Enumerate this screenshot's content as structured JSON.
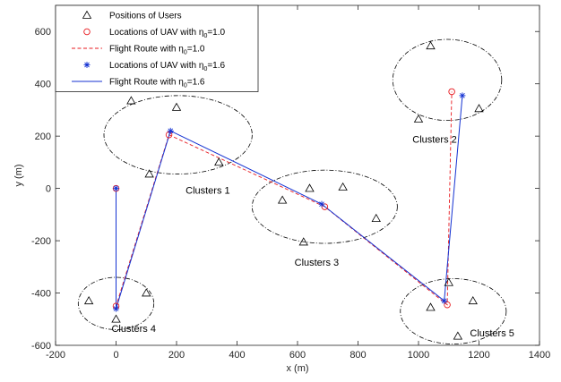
{
  "chart_data": {
    "type": "scatter",
    "xlabel": "x (m)",
    "ylabel": "y (m)",
    "xlim": [
      -200,
      1400
    ],
    "ylim": [
      -600,
      700
    ],
    "xticks": [
      "-200",
      "0",
      "200",
      "400",
      "600",
      "800",
      "1000",
      "1200",
      "1400"
    ],
    "yticks": [
      "-600",
      "-400",
      "-200",
      "0",
      "200",
      "400",
      "600"
    ],
    "grid": false,
    "legend_position": "top-left",
    "colors": {
      "users": "#000000",
      "route10": "#e8191f",
      "route16": "#1432d2",
      "ellipse": "#000000"
    },
    "legend": [
      {
        "key": "users",
        "label": "Positions of Users",
        "sub": ""
      },
      {
        "key": "uav10",
        "label": "Locations of UAV with η",
        "sub": "0",
        "suffix": "=1.0"
      },
      {
        "key": "route10",
        "label": "Flight Route with η",
        "sub": "0",
        "suffix": "=1.0"
      },
      {
        "key": "uav16",
        "label": "Locations of UAV with η",
        "sub": "0",
        "suffix": "=1.6"
      },
      {
        "key": "route16",
        "label": "Flight Route with η",
        "sub": "0",
        "suffix": "=1.6"
      }
    ],
    "series": [
      {
        "name": "Positions of Users",
        "marker": "triangle",
        "points": [
          [
            50,
            335
          ],
          [
            200,
            310
          ],
          [
            110,
            55
          ],
          [
            340,
            100
          ],
          [
            1000,
            265
          ],
          [
            1040,
            545
          ],
          [
            1200,
            305
          ],
          [
            550,
            -45
          ],
          [
            640,
            0
          ],
          [
            750,
            5
          ],
          [
            860,
            -115
          ],
          [
            620,
            -205
          ],
          [
            -90,
            -430
          ],
          [
            100,
            -400
          ],
          [
            0,
            -500
          ],
          [
            1040,
            -455
          ],
          [
            1100,
            -360
          ],
          [
            1180,
            -430
          ],
          [
            1130,
            -565
          ]
        ]
      },
      {
        "name": "Locations of UAV with η0=1.0",
        "marker": "circle",
        "points": [
          [
            0,
            0
          ],
          [
            175,
            205
          ],
          [
            690,
            -70
          ],
          [
            1095,
            -445
          ],
          [
            1110,
            370
          ],
          [
            0,
            -450
          ]
        ]
      },
      {
        "name": "Flight Route with η0=1.0",
        "style": "dashed",
        "points": [
          [
            0,
            0
          ],
          [
            0,
            -450
          ],
          [
            175,
            205
          ],
          [
            690,
            -70
          ],
          [
            1095,
            -445
          ],
          [
            1110,
            370
          ]
        ]
      },
      {
        "name": "Locations of UAV with η0=1.6",
        "marker": "star",
        "points": [
          [
            0,
            0
          ],
          [
            180,
            220
          ],
          [
            680,
            -60
          ],
          [
            1085,
            -430
          ],
          [
            1145,
            355
          ],
          [
            0,
            -460
          ]
        ]
      },
      {
        "name": "Flight Route with η0=1.6",
        "style": "solid",
        "points": [
          [
            0,
            0
          ],
          [
            0,
            -460
          ],
          [
            180,
            220
          ],
          [
            680,
            -60
          ],
          [
            1085,
            -430
          ],
          [
            1145,
            355
          ]
        ]
      }
    ],
    "clusters": [
      {
        "label": "Clusters 1",
        "center": [
          205,
          205
        ],
        "rx": 245,
        "ry": 150,
        "label_at": [
          230,
          -20
        ]
      },
      {
        "label": "Clusters 2",
        "center": [
          1095,
          415
        ],
        "rx": 180,
        "ry": 155,
        "label_at": [
          980,
          175
        ]
      },
      {
        "label": "Clusters 3",
        "center": [
          690,
          -70
        ],
        "rx": 240,
        "ry": 140,
        "label_at": [
          590,
          -295
        ]
      },
      {
        "label": "Clusters 4",
        "center": [
          0,
          -440
        ],
        "rx": 125,
        "ry": 100,
        "label_at": [
          -15,
          -548
        ]
      },
      {
        "label": "Clusters 5",
        "center": [
          1115,
          -470
        ],
        "rx": 175,
        "ry": 125,
        "label_at": [
          1170,
          -565
        ]
      }
    ]
  }
}
